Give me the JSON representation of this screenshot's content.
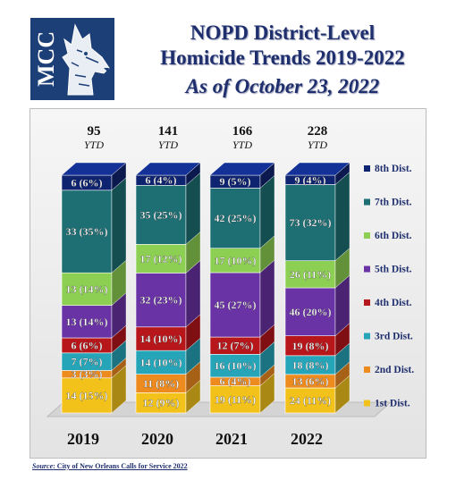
{
  "logo": {
    "letters": "MCC"
  },
  "title": {
    "line1": "NOPD District-Level",
    "line2": "Homicide Trends 2019-2022",
    "line3": "As of October 23, 2022"
  },
  "source": {
    "label": "Source",
    "text": ":  City of New Orleans Calls for Service 2022"
  },
  "colors": {
    "1st Dist.": "#f2c21b",
    "2nd Dist.": "#ee8b1f",
    "3rd Dist.": "#27a5b8",
    "4th Dist.": "#b7161b",
    "5th Dist.": "#6a33a5",
    "6th Dist.": "#8ccf52",
    "7th Dist.": "#1d6f73",
    "8th Dist.": "#0f2470"
  },
  "chart_data": {
    "type": "bar",
    "stacked": true,
    "categories": [
      "2019",
      "2020",
      "2021",
      "2022"
    ],
    "totals": [
      95,
      141,
      166,
      228
    ],
    "totals_suffix": "YTD",
    "legend_position": "right",
    "series": [
      {
        "name": "1st Dist.",
        "values": [
          14,
          12,
          19,
          24
        ],
        "labels": [
          "14 (15%)",
          "12 (9%)",
          "19 (11%)",
          "24 (11%)"
        ]
      },
      {
        "name": "2nd Dist.",
        "values": [
          3,
          11,
          6,
          13
        ],
        "labels": [
          "3 (3%)",
          "11 (8%)",
          "6 (4%)",
          "13 (6%)"
        ]
      },
      {
        "name": "3rd Dist.",
        "values": [
          7,
          14,
          16,
          18
        ],
        "labels": [
          "7 (7%)",
          "14 (10%)",
          "16 (10%)",
          "18 (8%)"
        ]
      },
      {
        "name": "4th Dist.",
        "values": [
          6,
          14,
          12,
          19
        ],
        "labels": [
          "6 (6%)",
          "14 (10%)",
          "12 (7%)",
          "19 (8%)"
        ]
      },
      {
        "name": "5th Dist.",
        "values": [
          13,
          32,
          45,
          46
        ],
        "labels": [
          "13 (14%)",
          "32 (23%)",
          "45 (27%)",
          "46 (20%)"
        ]
      },
      {
        "name": "6th Dist.",
        "values": [
          13,
          17,
          17,
          26
        ],
        "labels": [
          "13 (14%)",
          "17 (12%)",
          "17 (10%)",
          "26 (11%)"
        ]
      },
      {
        "name": "7th Dist.",
        "values": [
          33,
          35,
          42,
          73
        ],
        "labels": [
          "33 (35%)",
          "35 (25%)",
          "42 (25%)",
          "73 (32%)"
        ]
      },
      {
        "name": "8th Dist.",
        "values": [
          6,
          6,
          9,
          9
        ],
        "labels": [
          "6 (6%)",
          "6 (4%)",
          "9 (5%)",
          "9 (4%)"
        ]
      }
    ]
  }
}
